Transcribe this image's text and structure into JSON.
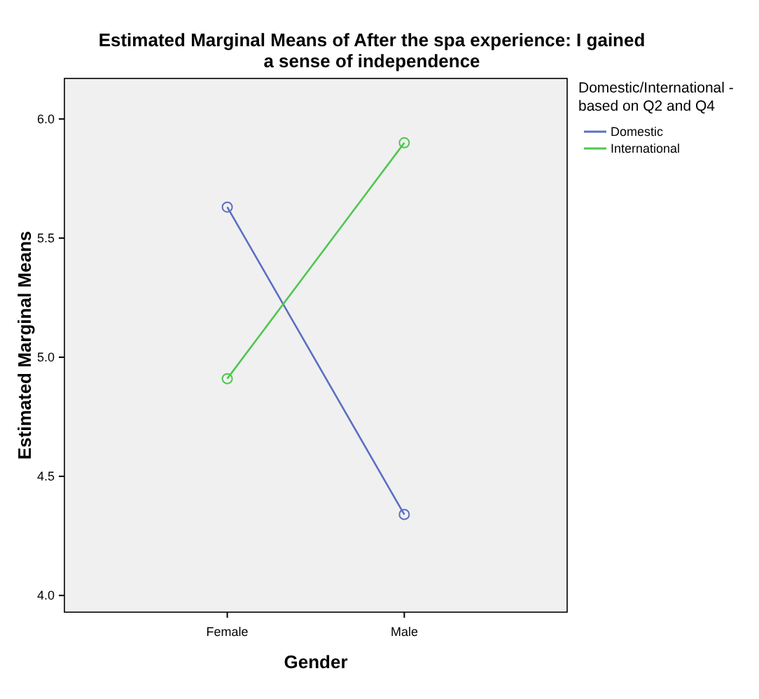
{
  "chart_data": {
    "type": "line",
    "title": "Estimated Marginal Means of After the spa experience: I gained a sense of independence",
    "xlabel": "Gender",
    "ylabel": "Estimated Marginal Means",
    "legend_title": "Domestic/International - based on Q2 and Q4",
    "categories": [
      "Female",
      "Male"
    ],
    "series": [
      {
        "name": "Domestic",
        "color": "#5b6fc2",
        "values": [
          5.63,
          4.34
        ]
      },
      {
        "name": "International",
        "color": "#4ec74e",
        "values": [
          4.91,
          5.9
        ]
      }
    ],
    "ylim": [
      3.93,
      6.17
    ],
    "yticks": [
      {
        "value": 4,
        "label": "4.0"
      },
      {
        "value": 4.5,
        "label": "4.5"
      },
      {
        "value": 5,
        "label": "5.0"
      },
      {
        "value": 5.5,
        "label": "5.5"
      },
      {
        "value": 6,
        "label": "6.0"
      }
    ],
    "grid": false,
    "legend": "top right",
    "marker": "circle",
    "line_style": "solid"
  }
}
